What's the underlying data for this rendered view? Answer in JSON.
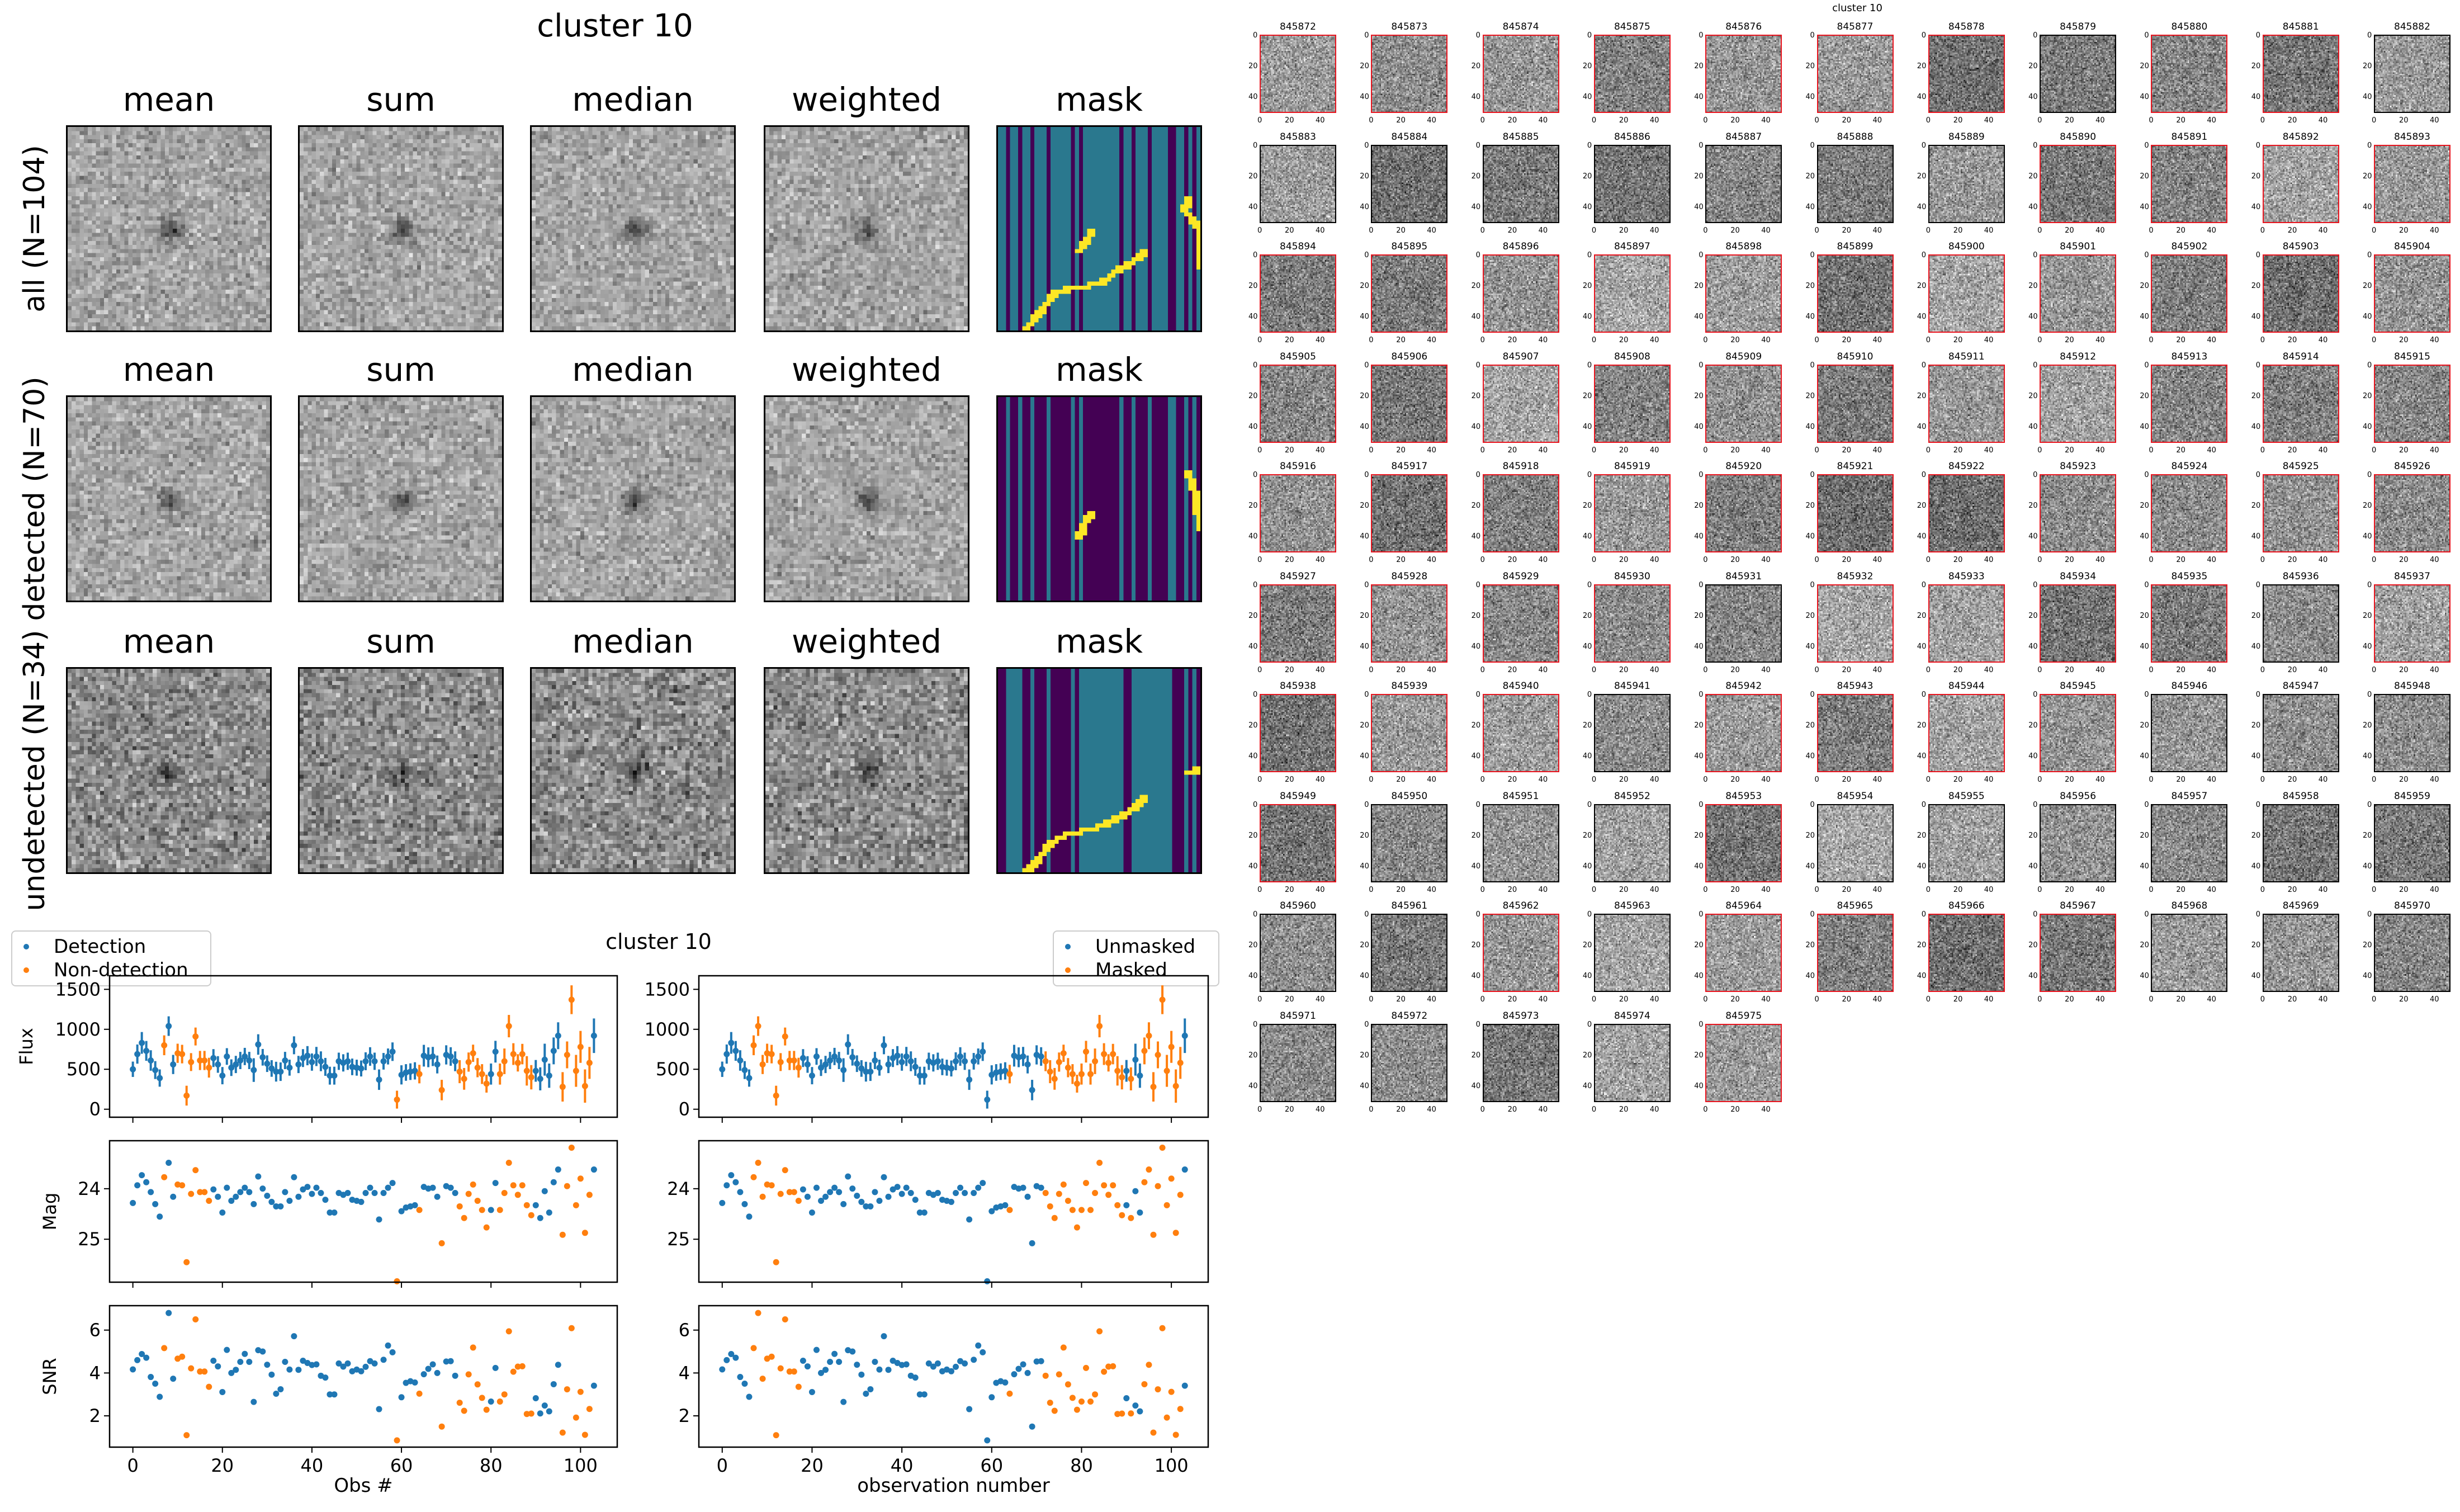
{
  "stack_figure": {
    "title": "cluster 10",
    "column_labels": [
      "mean",
      "sum",
      "median",
      "weighted",
      "mask"
    ],
    "row_labels": [
      "all (N=104)",
      "detected (N=70)",
      "undetected (N=34)"
    ]
  },
  "lightcurve": {
    "title": "cluster 10",
    "legend_left": [
      "Detection",
      "Non-detection"
    ],
    "legend_right": [
      "Unmasked",
      "Masked"
    ],
    "colors": {
      "primary": "#1f77b4",
      "secondary": "#ff7f0e"
    }
  },
  "chart_data": [
    {
      "type": "scatter",
      "title": "cluster 10",
      "panels": [
        "Flux",
        "Mag",
        "SNR"
      ],
      "ylabels": [
        "Flux",
        "Mag",
        "SNR"
      ],
      "xlabel_left": "Obs #",
      "xlabel_right": "observation number",
      "xlim": [
        -5.2,
        108.2
      ],
      "xticks": [
        0,
        20,
        40,
        60,
        80,
        100
      ],
      "flux_ylim": [
        -100,
        1670
      ],
      "flux_yticks": [
        0,
        500,
        1000,
        1500
      ],
      "mag_ylim": [
        25.85,
        23.05
      ],
      "mag_yticks": [
        24,
        25
      ],
      "mag_zeropoint": 31.03,
      "snr_ylim": [
        0.54,
        7.14
      ],
      "snr_yticks": [
        2,
        4,
        6
      ],
      "flux": [
        500,
        690,
        830,
        730,
        610,
        490,
        390,
        800,
        1040,
        560,
        700,
        690,
        170,
        590,
        910,
        610,
        610,
        520,
        640,
        560,
        420,
        660,
        520,
        560,
        610,
        660,
        610,
        490,
        810,
        650,
        570,
        510,
        470,
        470,
        610,
        520,
        800,
        560,
        640,
        670,
        590,
        660,
        600,
        530,
        420,
        420,
        600,
        580,
        600,
        530,
        520,
        510,
        600,
        660,
        600,
        370,
        600,
        660,
        720,
        120,
        430,
        460,
        470,
        480,
        440,
        670,
        650,
        660,
        560,
        240,
        680,
        660,
        600,
        470,
        380,
        590,
        700,
        520,
        440,
        320,
        440,
        720,
        440,
        600,
        1040,
        690,
        580,
        690,
        480,
        400,
        480,
        380,
        620,
        420,
        730,
        920,
        280,
        680,
        1370,
        480,
        780,
        290,
        580,
        920
      ],
      "flux_err": [
        120,
        150,
        170,
        155,
        160,
        140,
        135,
        155,
        153,
        150,
        150,
        145,
        155,
        140,
        140,
        150,
        150,
        155,
        140,
        130,
        135,
        130,
        130,
        135,
        135,
        135,
        135,
        185,
        160,
        130,
        130,
        130,
        155,
        145,
        135,
        125,
        140,
        135,
        140,
        150,
        135,
        150,
        155,
        140,
        140,
        140,
        135,
        135,
        135,
        130,
        125,
        125,
        140,
        145,
        135,
        160,
        130,
        125,
        145,
        140,
        150,
        130,
        130,
        135,
        145,
        170,
        155,
        150,
        140,
        160,
        150,
        145,
        155,
        180,
        170,
        150,
        135,
        150,
        155,
        140,
        165,
        170,
        165,
        200,
        175,
        170,
        135,
        160,
        230,
        190,
        170,
        180,
        250,
        190,
        210,
        210,
        230,
        210,
        225,
        250,
        250,
        260,
        250,
        270
      ],
      "nondetection_obs": [
        7,
        10,
        11,
        12,
        13,
        14,
        15,
        16,
        17,
        59,
        64,
        69,
        73,
        74,
        75,
        76,
        77,
        78,
        79,
        82,
        83,
        84,
        85,
        86,
        87,
        88,
        89,
        96,
        97,
        98,
        99,
        100,
        101,
        102
      ],
      "masked_obs": [
        7,
        8,
        9,
        10,
        11,
        12,
        13,
        14,
        15,
        16,
        17,
        64,
        72,
        73,
        74,
        75,
        76,
        77,
        78,
        79,
        80,
        81,
        82,
        83,
        84,
        85,
        86,
        87,
        88,
        89,
        91,
        94,
        95,
        96,
        97,
        98,
        99,
        100,
        101,
        102
      ]
    }
  ],
  "thumbnails": {
    "title": "cluster 10",
    "tick_labels": [
      "0",
      "20",
      "40"
    ],
    "ids": [
      845872,
      845873,
      845874,
      845875,
      845876,
      845877,
      845878,
      845879,
      845880,
      845881,
      845882,
      845883,
      845884,
      845885,
      845886,
      845887,
      845888,
      845889,
      845890,
      845891,
      845892,
      845893,
      845894,
      845895,
      845896,
      845897,
      845898,
      845899,
      845900,
      845901,
      845902,
      845903,
      845904,
      845905,
      845906,
      845907,
      845908,
      845909,
      845910,
      845911,
      845912,
      845913,
      845914,
      845915,
      845916,
      845917,
      845918,
      845919,
      845920,
      845921,
      845922,
      845923,
      845924,
      845925,
      845926,
      845927,
      845928,
      845929,
      845930,
      845931,
      845932,
      845933,
      845934,
      845935,
      845936,
      845937,
      845938,
      845939,
      845940,
      845941,
      845942,
      845943,
      845944,
      845945,
      845946,
      845947,
      845948,
      845949,
      845950,
      845951,
      845952,
      845953,
      845954,
      845955,
      845956,
      845957,
      845958,
      845959,
      845960,
      845961,
      845962,
      845963,
      845964,
      845965,
      845966,
      845967,
      845968,
      845969,
      845970,
      845971,
      845972,
      845973,
      845974,
      845975
    ],
    "flagged": [
      1,
      1,
      1,
      1,
      1,
      1,
      1,
      0,
      1,
      1,
      0,
      0,
      0,
      0,
      0,
      0,
      0,
      0,
      1,
      1,
      1,
      1,
      1,
      1,
      1,
      1,
      1,
      1,
      1,
      1,
      1,
      1,
      1,
      1,
      1,
      1,
      1,
      1,
      1,
      1,
      1,
      1,
      1,
      1,
      1,
      1,
      1,
      1,
      1,
      1,
      1,
      1,
      1,
      1,
      1,
      1,
      1,
      1,
      1,
      0,
      1,
      1,
      1,
      1,
      0,
      1,
      1,
      1,
      1,
      0,
      1,
      1,
      1,
      1,
      0,
      0,
      0,
      1,
      0,
      0,
      0,
      1,
      0,
      0,
      0,
      0,
      0,
      0,
      0,
      0,
      1,
      0,
      1,
      1,
      1,
      1,
      0,
      0,
      0,
      0,
      0,
      0,
      0,
      1
    ],
    "flag_color": "#e8141e"
  }
}
